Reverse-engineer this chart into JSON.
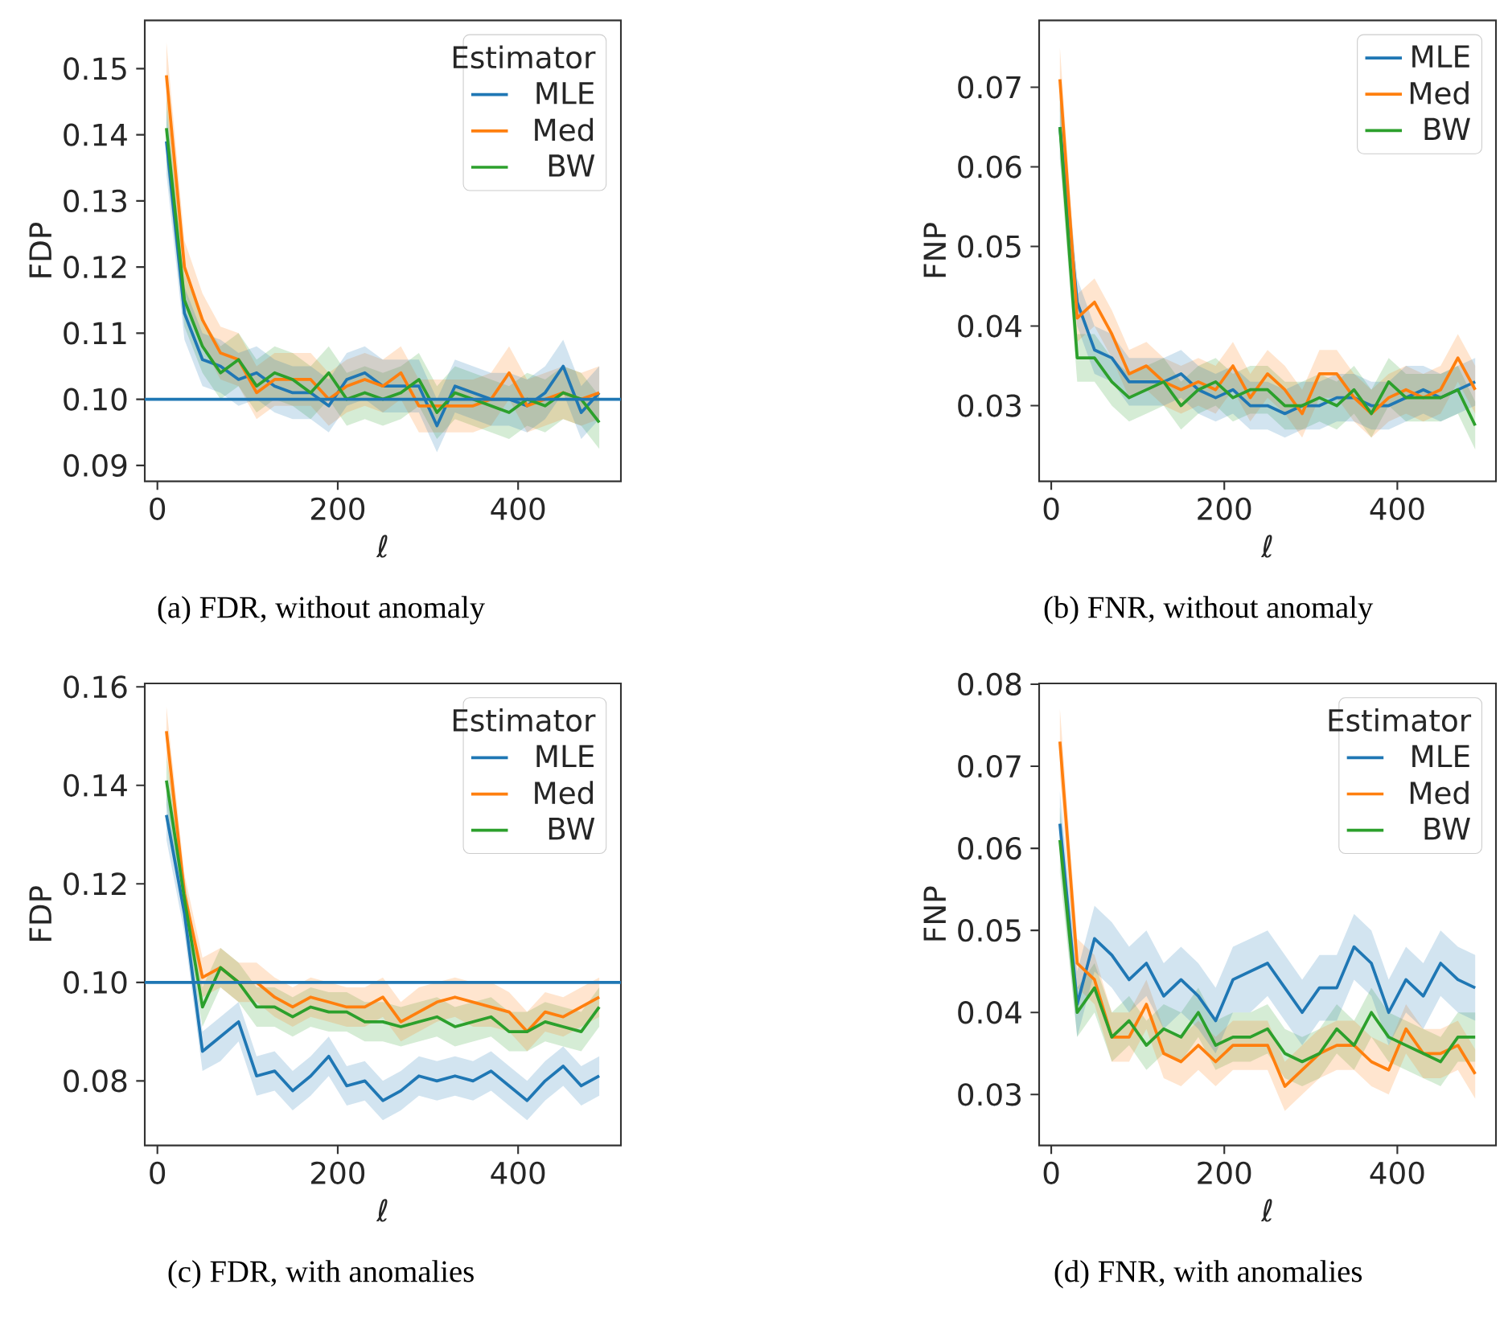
{
  "chart_data": [
    {
      "type": "line",
      "xlabel": "ℓ",
      "ylabel": "FDP",
      "legend_title": "Estimator",
      "legend": "top right",
      "annotations": [
        "(a) FDR, without anomaly"
      ],
      "x": [
        10,
        30,
        50,
        70,
        90,
        110,
        130,
        150,
        170,
        190,
        210,
        230,
        250,
        270,
        290,
        310,
        330,
        350,
        370,
        390,
        410,
        430,
        450,
        470,
        490
      ],
      "xlim": [
        -14,
        514
      ],
      "xticks": [
        0,
        200,
        400
      ],
      "ylim": [
        0.0876,
        0.1573
      ],
      "yticks": [
        {
          "value": 0.09,
          "label": "0.09"
        },
        {
          "value": 0.1,
          "label": "0.10"
        },
        {
          "value": 0.11,
          "label": "0.11"
        },
        {
          "value": 0.12,
          "label": "0.12"
        },
        {
          "value": 0.13,
          "label": "0.13"
        },
        {
          "value": 0.14,
          "label": "0.14"
        },
        {
          "value": 0.15,
          "label": "0.15"
        }
      ],
      "ref_lines": [
        {
          "axis": "y",
          "value": 0.1,
          "color": "#1f77b4"
        }
      ],
      "series": [
        {
          "name": "MLE",
          "color": "#1f77b4",
          "values": [
            0.139,
            0.113,
            0.106,
            0.105,
            0.103,
            0.104,
            0.102,
            0.101,
            0.101,
            0.099,
            0.103,
            0.104,
            0.102,
            0.102,
            0.102,
            0.096,
            0.102,
            0.101,
            0.1,
            0.1,
            0.099,
            0.101,
            0.105,
            0.098,
            0.101
          ],
          "lower": [
            0.134,
            0.109,
            0.102,
            0.101,
            0.099,
            0.1,
            0.098,
            0.097,
            0.097,
            0.095,
            0.099,
            0.1,
            0.098,
            0.098,
            0.098,
            0.092,
            0.098,
            0.097,
            0.096,
            0.096,
            0.095,
            0.097,
            0.101,
            0.094,
            0.097
          ],
          "upper": [
            0.144,
            0.117,
            0.11,
            0.109,
            0.107,
            0.108,
            0.106,
            0.105,
            0.105,
            0.103,
            0.107,
            0.108,
            0.106,
            0.106,
            0.106,
            0.1,
            0.106,
            0.105,
            0.104,
            0.104,
            0.103,
            0.105,
            0.109,
            0.102,
            0.105
          ]
        },
        {
          "name": "Med",
          "color": "#ff7f0e",
          "values": [
            0.149,
            0.12,
            0.112,
            0.107,
            0.106,
            0.101,
            0.103,
            0.103,
            0.103,
            0.1,
            0.102,
            0.103,
            0.102,
            0.104,
            0.099,
            0.099,
            0.099,
            0.099,
            0.1,
            0.104,
            0.099,
            0.1,
            0.101,
            0.1,
            0.101
          ],
          "lower": [
            0.144,
            0.116,
            0.108,
            0.103,
            0.102,
            0.097,
            0.099,
            0.099,
            0.099,
            0.096,
            0.098,
            0.099,
            0.098,
            0.1,
            0.095,
            0.095,
            0.095,
            0.095,
            0.096,
            0.1,
            0.095,
            0.096,
            0.097,
            0.096,
            0.097
          ],
          "upper": [
            0.154,
            0.124,
            0.116,
            0.111,
            0.11,
            0.105,
            0.107,
            0.107,
            0.107,
            0.104,
            0.106,
            0.107,
            0.106,
            0.108,
            0.103,
            0.103,
            0.103,
            0.103,
            0.104,
            0.108,
            0.103,
            0.104,
            0.105,
            0.104,
            0.105
          ]
        },
        {
          "name": "BW",
          "color": "#2ca02c",
          "values": [
            0.141,
            0.115,
            0.108,
            0.104,
            0.106,
            0.102,
            0.104,
            0.103,
            0.101,
            0.104,
            0.1,
            0.101,
            0.1,
            0.101,
            0.103,
            0.098,
            0.101,
            0.1,
            0.099,
            0.098,
            0.1,
            0.099,
            0.101,
            0.1,
            0.0965
          ],
          "lower": [
            0.136,
            0.111,
            0.104,
            0.1,
            0.102,
            0.098,
            0.1,
            0.099,
            0.097,
            0.1,
            0.096,
            0.097,
            0.096,
            0.097,
            0.099,
            0.094,
            0.097,
            0.096,
            0.095,
            0.094,
            0.096,
            0.095,
            0.097,
            0.096,
            0.0925
          ],
          "upper": [
            0.146,
            0.119,
            0.112,
            0.108,
            0.11,
            0.106,
            0.108,
            0.107,
            0.105,
            0.108,
            0.104,
            0.105,
            0.104,
            0.105,
            0.107,
            0.102,
            0.105,
            0.104,
            0.103,
            0.102,
            0.104,
            0.103,
            0.105,
            0.104,
            0.1005
          ]
        }
      ]
    },
    {
      "type": "line",
      "xlabel": "ℓ",
      "ylabel": "FNP",
      "legend": "top right",
      "annotations": [
        "(b) FNR, without anomaly"
      ],
      "x": [
        10,
        30,
        50,
        70,
        90,
        110,
        130,
        150,
        170,
        190,
        210,
        230,
        250,
        270,
        290,
        310,
        330,
        350,
        370,
        390,
        410,
        430,
        450,
        470,
        490
      ],
      "xlim": [
        -14,
        514
      ],
      "xticks": [
        0,
        200,
        400
      ],
      "ylim": [
        0.0205,
        0.0784
      ],
      "yticks": [
        {
          "value": 0.03,
          "label": "0.03"
        },
        {
          "value": 0.04,
          "label": "0.04"
        },
        {
          "value": 0.05,
          "label": "0.05"
        },
        {
          "value": 0.06,
          "label": "0.06"
        },
        {
          "value": 0.07,
          "label": "0.07"
        }
      ],
      "series": [
        {
          "name": "MLE",
          "color": "#1f77b4",
          "values": [
            0.065,
            0.043,
            0.037,
            0.036,
            0.033,
            0.033,
            0.033,
            0.034,
            0.032,
            0.031,
            0.032,
            0.03,
            0.03,
            0.029,
            0.03,
            0.03,
            0.031,
            0.031,
            0.03,
            0.03,
            0.031,
            0.032,
            0.031,
            0.032,
            0.033
          ],
          "lower": [
            0.061,
            0.04,
            0.034,
            0.033,
            0.03,
            0.03,
            0.03,
            0.031,
            0.029,
            0.028,
            0.029,
            0.027,
            0.027,
            0.026,
            0.027,
            0.027,
            0.028,
            0.028,
            0.027,
            0.027,
            0.028,
            0.029,
            0.028,
            0.029,
            0.03
          ],
          "upper": [
            0.069,
            0.046,
            0.04,
            0.039,
            0.036,
            0.036,
            0.036,
            0.037,
            0.035,
            0.034,
            0.035,
            0.033,
            0.033,
            0.032,
            0.033,
            0.033,
            0.034,
            0.034,
            0.033,
            0.033,
            0.035,
            0.035,
            0.034,
            0.035,
            0.036
          ]
        },
        {
          "name": "Med",
          "color": "#ff7f0e",
          "values": [
            0.071,
            0.041,
            0.043,
            0.039,
            0.034,
            0.035,
            0.033,
            0.032,
            0.033,
            0.032,
            0.035,
            0.031,
            0.034,
            0.032,
            0.029,
            0.034,
            0.034,
            0.031,
            0.029,
            0.031,
            0.032,
            0.031,
            0.032,
            0.036,
            0.032
          ],
          "lower": [
            0.067,
            0.038,
            0.04,
            0.036,
            0.031,
            0.032,
            0.03,
            0.029,
            0.03,
            0.029,
            0.032,
            0.028,
            0.031,
            0.029,
            0.026,
            0.031,
            0.031,
            0.028,
            0.026,
            0.028,
            0.029,
            0.028,
            0.029,
            0.033,
            0.029
          ],
          "upper": [
            0.075,
            0.044,
            0.046,
            0.042,
            0.037,
            0.038,
            0.036,
            0.035,
            0.036,
            0.035,
            0.038,
            0.034,
            0.037,
            0.035,
            0.032,
            0.037,
            0.037,
            0.034,
            0.032,
            0.034,
            0.035,
            0.034,
            0.035,
            0.039,
            0.035
          ]
        },
        {
          "name": "BW",
          "color": "#2ca02c",
          "values": [
            0.065,
            0.036,
            0.036,
            0.033,
            0.031,
            0.032,
            0.033,
            0.03,
            0.032,
            0.033,
            0.031,
            0.032,
            0.032,
            0.03,
            0.03,
            0.031,
            0.03,
            0.032,
            0.029,
            0.033,
            0.031,
            0.031,
            0.031,
            0.032,
            0.0275
          ],
          "lower": [
            0.061,
            0.033,
            0.033,
            0.03,
            0.028,
            0.029,
            0.03,
            0.027,
            0.029,
            0.03,
            0.028,
            0.029,
            0.029,
            0.027,
            0.027,
            0.028,
            0.027,
            0.029,
            0.026,
            0.03,
            0.028,
            0.028,
            0.028,
            0.029,
            0.0245
          ],
          "upper": [
            0.069,
            0.039,
            0.039,
            0.036,
            0.034,
            0.035,
            0.036,
            0.033,
            0.035,
            0.036,
            0.034,
            0.035,
            0.035,
            0.033,
            0.033,
            0.034,
            0.033,
            0.035,
            0.032,
            0.036,
            0.034,
            0.034,
            0.034,
            0.035,
            0.0305
          ]
        }
      ]
    },
    {
      "type": "line",
      "xlabel": "ℓ",
      "ylabel": "FDP",
      "legend_title": "Estimator",
      "legend": "top right",
      "annotations": [
        "(c) FDR, with anomalies"
      ],
      "x": [
        10,
        30,
        50,
        70,
        90,
        110,
        130,
        150,
        170,
        190,
        210,
        230,
        250,
        270,
        290,
        310,
        330,
        350,
        370,
        390,
        410,
        430,
        450,
        470,
        490
      ],
      "xlim": [
        -14,
        514
      ],
      "xticks": [
        0,
        200,
        400
      ],
      "ylim": [
        0.0669,
        0.1607
      ],
      "yticks": [
        {
          "value": 0.08,
          "label": "0.08"
        },
        {
          "value": 0.1,
          "label": "0.10"
        },
        {
          "value": 0.12,
          "label": "0.12"
        },
        {
          "value": 0.14,
          "label": "0.14"
        },
        {
          "value": 0.16,
          "label": "0.16"
        }
      ],
      "ref_lines": [
        {
          "axis": "y",
          "value": 0.1,
          "color": "#1f77b4"
        }
      ],
      "series": [
        {
          "name": "MLE",
          "color": "#1f77b4",
          "values": [
            0.134,
            0.114,
            0.086,
            0.089,
            0.092,
            0.081,
            0.082,
            0.078,
            0.081,
            0.085,
            0.079,
            0.08,
            0.076,
            0.078,
            0.081,
            0.08,
            0.081,
            0.08,
            0.082,
            0.079,
            0.076,
            0.08,
            0.083,
            0.079,
            0.081
          ],
          "lower": [
            0.129,
            0.11,
            0.082,
            0.084,
            0.088,
            0.077,
            0.078,
            0.074,
            0.077,
            0.081,
            0.075,
            0.076,
            0.072,
            0.074,
            0.077,
            0.076,
            0.077,
            0.076,
            0.078,
            0.075,
            0.072,
            0.076,
            0.079,
            0.075,
            0.077
          ],
          "upper": [
            0.139,
            0.118,
            0.09,
            0.093,
            0.096,
            0.085,
            0.086,
            0.082,
            0.085,
            0.089,
            0.083,
            0.084,
            0.08,
            0.082,
            0.085,
            0.084,
            0.085,
            0.084,
            0.086,
            0.083,
            0.08,
            0.084,
            0.087,
            0.083,
            0.085
          ]
        },
        {
          "name": "Med",
          "color": "#ff7f0e",
          "values": [
            0.151,
            0.118,
            0.101,
            0.103,
            0.1,
            0.1,
            0.097,
            0.095,
            0.097,
            0.096,
            0.095,
            0.095,
            0.097,
            0.092,
            0.094,
            0.096,
            0.097,
            0.096,
            0.095,
            0.094,
            0.09,
            0.094,
            0.093,
            0.095,
            0.097
          ],
          "lower": [
            0.146,
            0.114,
            0.097,
            0.099,
            0.096,
            0.096,
            0.093,
            0.091,
            0.093,
            0.092,
            0.091,
            0.091,
            0.093,
            0.088,
            0.09,
            0.092,
            0.093,
            0.091,
            0.091,
            0.09,
            0.086,
            0.09,
            0.089,
            0.091,
            0.093
          ],
          "upper": [
            0.156,
            0.122,
            0.105,
            0.107,
            0.104,
            0.104,
            0.101,
            0.099,
            0.101,
            0.1,
            0.099,
            0.099,
            0.101,
            0.096,
            0.099,
            0.1,
            0.101,
            0.1,
            0.1,
            0.098,
            0.094,
            0.098,
            0.097,
            0.099,
            0.101
          ]
        },
        {
          "name": "BW",
          "color": "#2ca02c",
          "values": [
            0.141,
            0.117,
            0.095,
            0.103,
            0.1,
            0.095,
            0.095,
            0.093,
            0.095,
            0.094,
            0.094,
            0.092,
            0.092,
            0.091,
            0.092,
            0.093,
            0.091,
            0.092,
            0.093,
            0.09,
            0.09,
            0.092,
            0.091,
            0.09,
            0.095
          ],
          "lower": [
            0.136,
            0.113,
            0.091,
            0.099,
            0.096,
            0.091,
            0.091,
            0.089,
            0.091,
            0.09,
            0.09,
            0.088,
            0.088,
            0.087,
            0.088,
            0.089,
            0.087,
            0.088,
            0.089,
            0.086,
            0.086,
            0.088,
            0.087,
            0.086,
            0.091
          ],
          "upper": [
            0.146,
            0.121,
            0.099,
            0.107,
            0.104,
            0.099,
            0.099,
            0.097,
            0.099,
            0.098,
            0.098,
            0.096,
            0.096,
            0.095,
            0.096,
            0.097,
            0.095,
            0.096,
            0.097,
            0.094,
            0.094,
            0.096,
            0.095,
            0.094,
            0.099
          ]
        }
      ]
    },
    {
      "type": "line",
      "xlabel": "ℓ",
      "ylabel": "FNP",
      "legend_title": "Estimator",
      "legend": "top right",
      "annotations": [
        "(d) FNR, with anomalies"
      ],
      "x": [
        10,
        30,
        50,
        70,
        90,
        110,
        130,
        150,
        170,
        190,
        210,
        230,
        250,
        270,
        290,
        310,
        330,
        350,
        370,
        390,
        410,
        430,
        450,
        470,
        490
      ],
      "xlim": [
        -14,
        514
      ],
      "xticks": [
        0,
        200,
        400
      ],
      "ylim": [
        0.0238,
        0.0801
      ],
      "yticks": [
        {
          "value": 0.03,
          "label": "0.03"
        },
        {
          "value": 0.04,
          "label": "0.04"
        },
        {
          "value": 0.05,
          "label": "0.05"
        },
        {
          "value": 0.06,
          "label": "0.06"
        },
        {
          "value": 0.07,
          "label": "0.07"
        },
        {
          "value": 0.08,
          "label": "0.08"
        }
      ],
      "series": [
        {
          "name": "MLE",
          "color": "#1f77b4",
          "values": [
            0.063,
            0.041,
            0.049,
            0.047,
            0.044,
            0.046,
            0.042,
            0.044,
            0.042,
            0.039,
            0.044,
            0.045,
            0.046,
            0.043,
            0.04,
            0.043,
            0.043,
            0.048,
            0.046,
            0.04,
            0.044,
            0.042,
            0.046,
            0.044,
            0.043
          ],
          "lower": [
            0.059,
            0.037,
            0.045,
            0.043,
            0.04,
            0.042,
            0.038,
            0.04,
            0.038,
            0.035,
            0.04,
            0.04,
            0.042,
            0.039,
            0.036,
            0.039,
            0.039,
            0.044,
            0.042,
            0.036,
            0.04,
            0.038,
            0.042,
            0.04,
            0.039
          ],
          "upper": [
            0.067,
            0.045,
            0.053,
            0.051,
            0.048,
            0.05,
            0.046,
            0.048,
            0.046,
            0.043,
            0.048,
            0.049,
            0.05,
            0.047,
            0.044,
            0.047,
            0.047,
            0.052,
            0.05,
            0.044,
            0.048,
            0.046,
            0.05,
            0.048,
            0.047
          ]
        },
        {
          "name": "Med",
          "color": "#ff7f0e",
          "values": [
            0.073,
            0.046,
            0.044,
            0.037,
            0.037,
            0.041,
            0.035,
            0.034,
            0.036,
            0.034,
            0.036,
            0.036,
            0.036,
            0.031,
            0.033,
            0.035,
            0.036,
            0.036,
            0.034,
            0.033,
            0.038,
            0.035,
            0.035,
            0.036,
            0.0325
          ],
          "lower": [
            0.069,
            0.043,
            0.041,
            0.034,
            0.034,
            0.038,
            0.032,
            0.031,
            0.033,
            0.031,
            0.033,
            0.033,
            0.033,
            0.028,
            0.03,
            0.032,
            0.033,
            0.033,
            0.031,
            0.03,
            0.035,
            0.032,
            0.032,
            0.033,
            0.0295
          ],
          "upper": [
            0.077,
            0.049,
            0.047,
            0.04,
            0.04,
            0.044,
            0.038,
            0.037,
            0.039,
            0.037,
            0.039,
            0.039,
            0.039,
            0.034,
            0.036,
            0.038,
            0.039,
            0.039,
            0.037,
            0.036,
            0.041,
            0.038,
            0.038,
            0.039,
            0.0355
          ]
        },
        {
          "name": "BW",
          "color": "#2ca02c",
          "values": [
            0.061,
            0.04,
            0.043,
            0.037,
            0.039,
            0.036,
            0.038,
            0.037,
            0.04,
            0.036,
            0.037,
            0.037,
            0.038,
            0.035,
            0.034,
            0.035,
            0.038,
            0.036,
            0.04,
            0.037,
            0.036,
            0.035,
            0.034,
            0.037,
            0.037
          ],
          "lower": [
            0.057,
            0.037,
            0.04,
            0.034,
            0.036,
            0.033,
            0.035,
            0.034,
            0.037,
            0.033,
            0.034,
            0.034,
            0.035,
            0.032,
            0.031,
            0.032,
            0.035,
            0.033,
            0.037,
            0.034,
            0.033,
            0.032,
            0.031,
            0.034,
            0.034
          ],
          "upper": [
            0.065,
            0.043,
            0.046,
            0.04,
            0.042,
            0.039,
            0.041,
            0.04,
            0.043,
            0.039,
            0.04,
            0.04,
            0.041,
            0.038,
            0.037,
            0.038,
            0.041,
            0.039,
            0.043,
            0.04,
            0.039,
            0.038,
            0.037,
            0.04,
            0.04
          ]
        }
      ]
    }
  ]
}
